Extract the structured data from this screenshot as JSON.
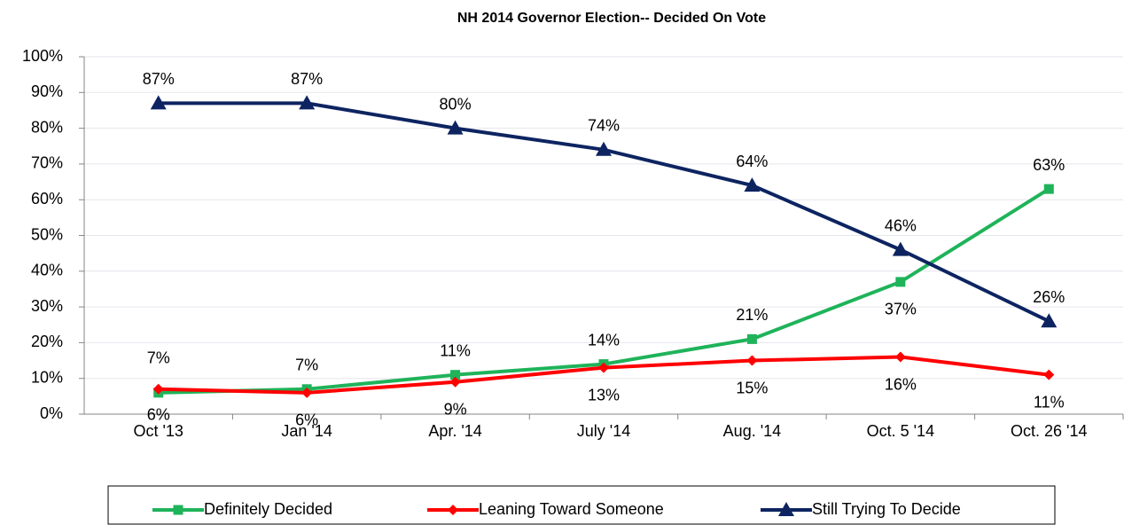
{
  "chart_data": {
    "type": "line",
    "title": "NH 2014 Governor Election-- Decided On Vote",
    "categories": [
      "Oct '13",
      "Jan '14",
      "Apr. '14",
      "July '14",
      "Aug. '14",
      "Oct. 5 '14",
      "Oct. 26 '14"
    ],
    "series": [
      {
        "name": "Definitely Decided",
        "color": "#1fb35a",
        "marker": "square",
        "values": [
          6,
          7,
          11,
          14,
          21,
          37,
          63
        ],
        "value_labels": [
          "6%",
          "7%",
          "11%",
          "14%",
          "21%",
          "37%",
          "63%"
        ]
      },
      {
        "name": "Leaning Toward Someone",
        "color": "#ff0000",
        "marker": "diamond",
        "values": [
          7,
          6,
          9,
          13,
          15,
          16,
          11
        ],
        "value_labels": [
          "7%",
          "6%",
          "9%",
          "13%",
          "15%",
          "16%",
          "11%"
        ]
      },
      {
        "name": "Still Trying To Decide",
        "color": "#0d2461",
        "marker": "triangle",
        "values": [
          87,
          87,
          80,
          74,
          64,
          46,
          26
        ],
        "value_labels": [
          "87%",
          "87%",
          "80%",
          "74%",
          "64%",
          "46%",
          "26%"
        ]
      }
    ],
    "ylim": [
      0,
      100
    ],
    "yticks": [
      {
        "value": 0,
        "label": "0%"
      },
      {
        "value": 10,
        "label": "10%"
      },
      {
        "value": 20,
        "label": "20%"
      },
      {
        "value": 30,
        "label": "30%"
      },
      {
        "value": 40,
        "label": "40%"
      },
      {
        "value": 50,
        "label": "50%"
      },
      {
        "value": 60,
        "label": "60%"
      },
      {
        "value": 70,
        "label": "70%"
      },
      {
        "value": 80,
        "label": "80%"
      },
      {
        "value": 90,
        "label": "90%"
      },
      {
        "value": 100,
        "label": "100%"
      }
    ],
    "grid": true,
    "legend": "bottom"
  }
}
